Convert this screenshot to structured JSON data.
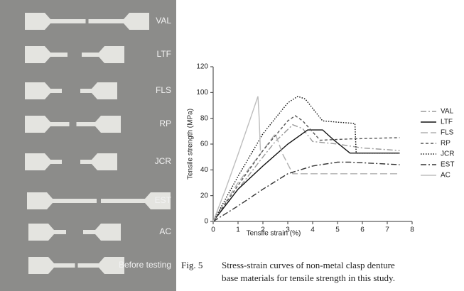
{
  "photo": {
    "labels": [
      "VAL",
      "LTF",
      "FLS",
      "RP",
      "JCR",
      "EST",
      "AC",
      "Before testing"
    ]
  },
  "chart_data": {
    "type": "line",
    "xlabel": "Tensile strain  (%)",
    "ylabel": "Tensile strength  (MPa)",
    "xlim": [
      0,
      8
    ],
    "xticks": [
      0,
      1,
      2,
      3,
      4,
      5,
      6,
      7,
      8
    ],
    "ylim": [
      0,
      120
    ],
    "yticks": [
      0,
      20,
      40,
      60,
      80,
      100,
      120
    ],
    "series": [
      {
        "name": "VAL",
        "color": "#9a9a9a",
        "dash": "8 3 2 3",
        "x": [
          0,
          1,
          2,
          2.5,
          3.2,
          3.6,
          4,
          5,
          6,
          7.5
        ],
        "values": [
          0,
          25,
          50,
          62,
          75,
          72,
          62,
          60,
          57,
          55
        ]
      },
      {
        "name": "LTF",
        "color": "#111111",
        "dash": "none",
        "x": [
          0,
          1,
          2,
          3,
          3.8,
          4.4,
          4.8,
          5.5,
          6.5,
          7.5
        ],
        "values": [
          0,
          25,
          43,
          60,
          71,
          71,
          64,
          53,
          53,
          53
        ]
      },
      {
        "name": "FLS",
        "color": "#b0b0b0",
        "dash": "10 4",
        "x": [
          0,
          1,
          2,
          2.5,
          2.8,
          3.2,
          4,
          5.5,
          7.5
        ],
        "values": [
          0,
          30,
          55,
          68,
          52,
          37,
          37,
          37,
          37
        ]
      },
      {
        "name": "RP",
        "color": "#555555",
        "dash": "4 3",
        "x": [
          0,
          1,
          2,
          3,
          3.3,
          3.6,
          4.3,
          5.5,
          7.5
        ],
        "values": [
          0,
          28,
          55,
          78,
          82,
          78,
          63,
          64,
          65
        ]
      },
      {
        "name": "JCR",
        "color": "#111111",
        "dash": "1.5 2",
        "x": [
          0,
          1,
          2,
          3,
          3.4,
          3.7,
          4.4,
          5,
          5.7,
          5.75,
          6.5,
          7.5
        ],
        "values": [
          0,
          35,
          68,
          92,
          97,
          95,
          78,
          77,
          76,
          53,
          53,
          53
        ]
      },
      {
        "name": "EST",
        "color": "#333333",
        "dash": "8 3 2 3",
        "x": [
          0,
          1,
          2,
          3,
          4,
          5,
          5.5,
          6.5,
          7.5
        ],
        "values": [
          0,
          12,
          25,
          37,
          43,
          46,
          46,
          45,
          44
        ]
      },
      {
        "name": "AC",
        "color": "#bdbdbd",
        "dash": "none",
        "x": [
          0,
          0.5,
          1,
          1.5,
          1.8,
          1.85,
          1.9
        ],
        "values": [
          0,
          25,
          52,
          80,
          97,
          80,
          55
        ]
      }
    ]
  },
  "caption": {
    "label": "Fig. 5",
    "lines": [
      "Stress-strain curves of non-metal clasp denture",
      "base materials for tensile strength in this study."
    ]
  }
}
